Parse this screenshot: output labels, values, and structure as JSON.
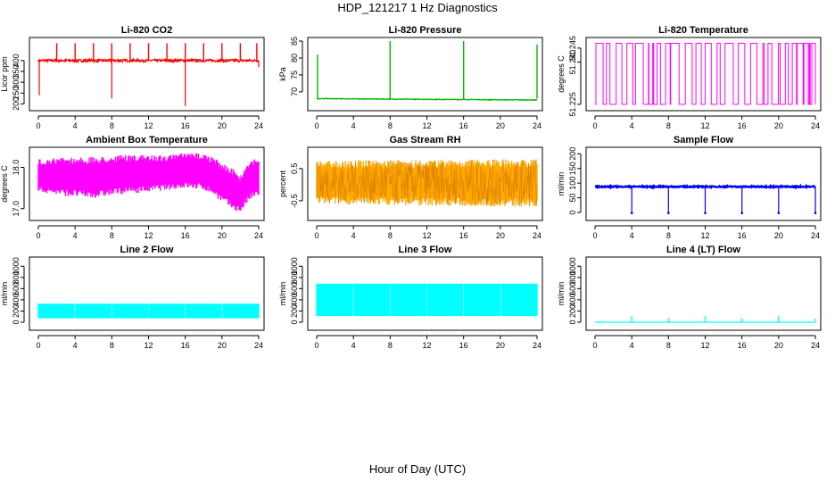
{
  "title": "HDP_121217  1 Hz Diagnostics",
  "xlabel": "Hour of Day (UTC)",
  "chart_data": [
    {
      "id": "co2",
      "type": "line",
      "title": "Li-820 CO2",
      "ylabel": "Licor ppm",
      "color": "#ff0000",
      "xlim": [
        0,
        24
      ],
      "ylim": [
        185,
        490
      ],
      "xticks": [
        0,
        4,
        8,
        12,
        16,
        20,
        24
      ],
      "yticks": [
        200,
        250,
        300,
        350,
        400
      ],
      "ytick_labels": [
        "200",
        "250",
        "300",
        "350",
        "400"
      ],
      "series": [
        {
          "name": "CO2",
          "baseline": 400,
          "noise": 6,
          "spikes_up": [
            {
              "x": 2.0,
              "y": 480
            },
            {
              "x": 4.0,
              "y": 480
            },
            {
              "x": 6.0,
              "y": 480
            },
            {
              "x": 8.0,
              "y": 480
            },
            {
              "x": 10.0,
              "y": 480
            },
            {
              "x": 12.0,
              "y": 480
            },
            {
              "x": 14.0,
              "y": 480
            },
            {
              "x": 16.0,
              "y": 480
            },
            {
              "x": 18.0,
              "y": 480
            },
            {
              "x": 20.0,
              "y": 480
            },
            {
              "x": 22.0,
              "y": 480
            },
            {
              "x": 23.8,
              "y": 480
            }
          ],
          "spikes_down": [
            {
              "x": 0.1,
              "y": 240
            },
            {
              "x": 8.0,
              "y": 225
            },
            {
              "x": 16.0,
              "y": 190
            },
            {
              "x": 24.0,
              "y": 370
            }
          ]
        }
      ]
    },
    {
      "id": "pressure",
      "type": "line",
      "title": "Li-820 Pressure",
      "ylabel": "kPa",
      "color": "#00bb00",
      "xlim": [
        0,
        24
      ],
      "ylim": [
        65.5,
        85
      ],
      "xticks": [
        0,
        4,
        8,
        12,
        16,
        20,
        24
      ],
      "yticks": [
        70,
        75,
        80,
        85
      ],
      "ytick_labels": [
        "70",
        "75",
        "80",
        "85"
      ],
      "series": [
        {
          "name": "Pressure",
          "start": 68,
          "end": 67.6,
          "noise": 0.1,
          "spikes_up": [
            {
              "x": 0.1,
              "y": 81
            },
            {
              "x": 8.0,
              "y": 85
            },
            {
              "x": 16.0,
              "y": 85
            },
            {
              "x": 24.0,
              "y": 84
            }
          ]
        }
      ]
    },
    {
      "id": "licor-temp",
      "type": "line",
      "title": "Li-820 Temperature",
      "ylabel": "degrees C",
      "color": "#ff00ff",
      "xlim": [
        0,
        24
      ],
      "ylim": [
        51.224,
        51.2475
      ],
      "xticks": [
        0,
        4,
        8,
        12,
        16,
        20,
        24
      ],
      "yticks": [
        51.225,
        51.24,
        51.245
      ],
      "ytick_labels": [
        "51.225",
        "51.240",
        "51.245"
      ],
      "series": [
        {
          "name": "Temp",
          "low": 51.225,
          "high": 51.2467
        }
      ]
    },
    {
      "id": "box-temp",
      "type": "band",
      "title": "Ambient Box Temperature",
      "ylabel": "degrees C",
      "color": "#ff00ff",
      "xlim": [
        0,
        24
      ],
      "ylim": [
        16.8,
        18.4
      ],
      "xticks": [
        0,
        4,
        8,
        12,
        16,
        20,
        24
      ],
      "yticks": [
        17.0,
        18.0
      ],
      "ytick_labels": [
        "17.0",
        "18.0"
      ],
      "series": [
        {
          "name": "Box temperature",
          "upper": [
            [
              0,
              18.2
            ],
            [
              3,
              18.25
            ],
            [
              6,
              18.25
            ],
            [
              9,
              18.3
            ],
            [
              12,
              18.3
            ],
            [
              14,
              18.3
            ],
            [
              16,
              18.35
            ],
            [
              18,
              18.35
            ],
            [
              19,
              18.25
            ],
            [
              20,
              18.1
            ],
            [
              21,
              18.0
            ],
            [
              22,
              17.8
            ],
            [
              23,
              18.2
            ],
            [
              24,
              18.25
            ]
          ],
          "lower": [
            [
              0,
              17.4
            ],
            [
              3,
              17.3
            ],
            [
              6,
              17.25
            ],
            [
              9,
              17.35
            ],
            [
              12,
              17.4
            ],
            [
              14,
              17.45
            ],
            [
              16,
              17.5
            ],
            [
              18,
              17.45
            ],
            [
              19,
              17.35
            ],
            [
              20,
              17.15
            ],
            [
              21,
              17.0
            ],
            [
              22,
              16.9
            ],
            [
              23,
              17.2
            ],
            [
              24,
              17.3
            ]
          ]
        }
      ]
    },
    {
      "id": "rh",
      "type": "band",
      "title": "Gas Stream RH",
      "ylabel": "percent",
      "color": "#ffaa00",
      "edge": "#cc6600",
      "xlim": [
        0,
        24
      ],
      "ylim": [
        -1.0,
        1.05
      ],
      "xticks": [
        0,
        4,
        8,
        12,
        16,
        20,
        24
      ],
      "yticks": [
        -0.5,
        0.5
      ],
      "ytick_labels": [
        "-0.5",
        "0.5"
      ],
      "series": [
        {
          "name": "RH",
          "upper": [
            [
              0,
              0.75
            ],
            [
              24,
              0.8
            ]
          ],
          "lower": [
            [
              0,
              -0.6
            ],
            [
              24,
              -0.7
            ]
          ]
        }
      ]
    },
    {
      "id": "sample-flow",
      "type": "line",
      "title": "Sample Flow",
      "ylabel": "ml/min",
      "color": "#0000ee",
      "xlim": [
        0,
        24
      ],
      "ylim": [
        -15,
        210
      ],
      "xticks": [
        0,
        4,
        8,
        12,
        16,
        20,
        24
      ],
      "yticks": [
        0,
        50,
        100,
        150,
        200
      ],
      "ytick_labels": [
        "0",
        "50",
        "100",
        "150",
        "200"
      ],
      "series": [
        {
          "name": "Flow",
          "baseline": 88,
          "noise": 2,
          "spikes_down": [
            {
              "x": 4.0,
              "y": -2
            },
            {
              "x": 8.0,
              "y": -2
            },
            {
              "x": 12.0,
              "y": -2
            },
            {
              "x": 16.0,
              "y": -2
            },
            {
              "x": 20.0,
              "y": -2
            },
            {
              "x": 24.0,
              "y": -2
            }
          ]
        }
      ]
    },
    {
      "id": "line2",
      "type": "band",
      "title": "Line 2 Flow",
      "ylabel": "ml/min",
      "color": "#00ffff",
      "xlim": [
        0,
        24
      ],
      "ylim": [
        -80,
        1100
      ],
      "xticks": [
        0,
        4,
        8,
        12,
        16,
        20,
        24
      ],
      "yticks": [
        0,
        200,
        400,
        600,
        800,
        1000
      ],
      "ytick_labels": [
        "0",
        "200",
        "400",
        "600",
        "800",
        "1000"
      ],
      "series": [
        {
          "name": "Line 2",
          "upper": [
            [
              0,
              330
            ],
            [
              24,
              330
            ]
          ],
          "lower": [
            [
              0,
              70
            ],
            [
              24,
              70
            ]
          ],
          "gaps": [
            4,
            8,
            12,
            16,
            20
          ]
        }
      ]
    },
    {
      "id": "line3",
      "type": "band",
      "title": "Line 3 Flow",
      "ylabel": "ml/min",
      "color": "#00ffff",
      "xlim": [
        0,
        24
      ],
      "ylim": [
        -80,
        1100
      ],
      "xticks": [
        0,
        4,
        8,
        12,
        16,
        20,
        24
      ],
      "yticks": [
        0,
        200,
        400,
        600,
        800,
        1000
      ],
      "ytick_labels": [
        "0",
        "200",
        "400",
        "600",
        "800",
        "1000"
      ],
      "series": [
        {
          "name": "Line 3",
          "upper": [
            [
              0,
              690
            ],
            [
              24,
              690
            ]
          ],
          "lower": [
            [
              0,
              110
            ],
            [
              24,
              110
            ]
          ],
          "gaps": [
            4,
            8,
            12,
            16,
            20
          ]
        }
      ]
    },
    {
      "id": "line4",
      "type": "line",
      "title": "Line 4 (LT) Flow",
      "ylabel": "ml/min",
      "color": "#00ffff",
      "xlim": [
        0,
        24
      ],
      "ylim": [
        -80,
        1100
      ],
      "xticks": [
        0,
        4,
        8,
        12,
        16,
        20,
        24
      ],
      "yticks": [
        0,
        200,
        400,
        600,
        800,
        1000
      ],
      "ytick_labels": [
        "0",
        "200",
        "400",
        "600",
        "800",
        "1000"
      ],
      "series": [
        {
          "name": "Line 4",
          "baseline": 0,
          "noise": 0,
          "spikes_up": [
            {
              "x": 4.0,
              "y": 110
            },
            {
              "x": 8.0,
              "y": 70
            },
            {
              "x": 12.0,
              "y": 110
            },
            {
              "x": 16.0,
              "y": 70
            },
            {
              "x": 20.0,
              "y": 110
            },
            {
              "x": 24.0,
              "y": 70
            }
          ]
        }
      ]
    }
  ]
}
